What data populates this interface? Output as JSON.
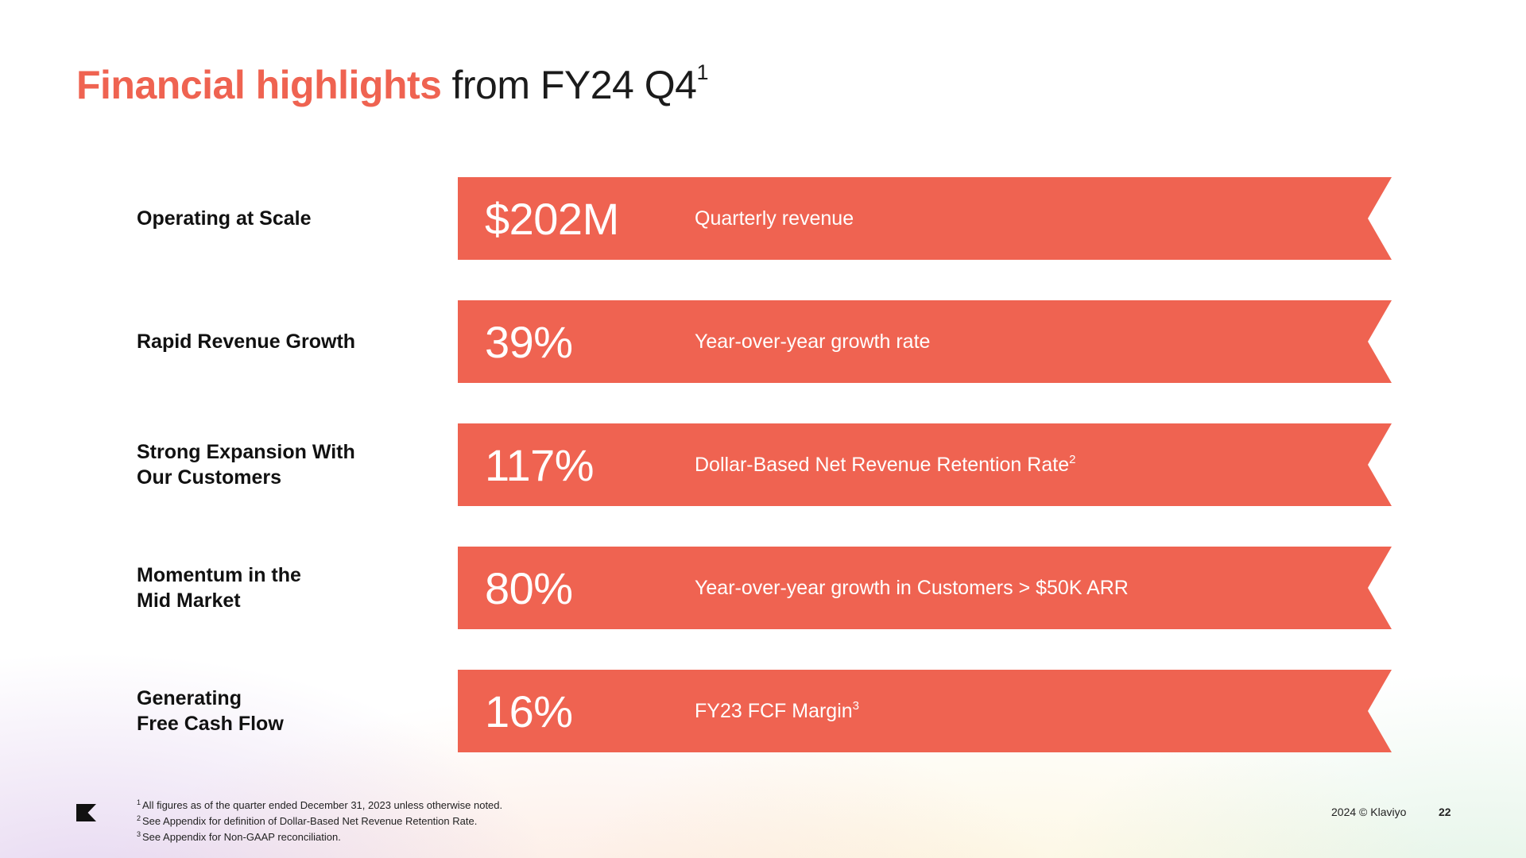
{
  "colors": {
    "accent": "#EF6351",
    "text": "#1b1b1b"
  },
  "title": {
    "highlight": "Financial highlights",
    "rest": "from FY24 Q4",
    "superscript": "1"
  },
  "rows": [
    {
      "label": "Operating at Scale",
      "value": "$202M",
      "desc": "Quarterly revenue",
      "desc_sup": ""
    },
    {
      "label": "Rapid Revenue Growth",
      "value": "39%",
      "desc": "Year-over-year growth rate",
      "desc_sup": ""
    },
    {
      "label": "Strong Expansion With\nOur Customers",
      "value": "117%",
      "desc": "Dollar-Based Net Revenue Retention Rate",
      "desc_sup": "2"
    },
    {
      "label": "Momentum in the\nMid Market",
      "value": "80%",
      "desc": "Year-over-year growth in Customers > $50K ARR",
      "desc_sup": ""
    },
    {
      "label": "Generating\nFree Cash Flow",
      "value": "16%",
      "desc": "FY23 FCF Margin",
      "desc_sup": "3"
    }
  ],
  "footnotes": [
    {
      "sup": "1",
      "text": "All figures as of the quarter ended December 31, 2023 unless otherwise noted."
    },
    {
      "sup": "2",
      "text": "See Appendix for definition of Dollar-Based Net Revenue Retention Rate."
    },
    {
      "sup": "3",
      "text": "See Appendix for Non-GAAP reconciliation."
    }
  ],
  "footer": {
    "logo_icon": "klaviyo-flag-icon",
    "copyright": "2024 © Klaviyo",
    "page": "22"
  }
}
